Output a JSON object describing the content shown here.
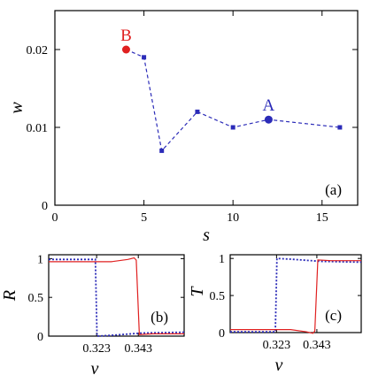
{
  "colors": {
    "blue": "#2b2bb8",
    "red": "#e02020",
    "axis": "#000000"
  },
  "chart_data": [
    {
      "type": "line",
      "panel": "(a)",
      "xlabel": "s",
      "ylabel": "w",
      "xlim": [
        0,
        17
      ],
      "ylim": [
        0,
        0.025
      ],
      "xticks": [
        0,
        5,
        10,
        15
      ],
      "yticks": [
        0,
        0.01,
        0.02
      ],
      "xtick_labels": [
        "0",
        "5",
        "10",
        "15"
      ],
      "ytick_labels": [
        "0",
        "0.01",
        "0.02"
      ],
      "series": [
        {
          "style": "dashed",
          "color": "#2b2bb8",
          "x": [
            4,
            5,
            6,
            8,
            10,
            12,
            16
          ],
          "y": [
            0.02,
            0.019,
            0.007,
            0.012,
            0.01,
            0.011,
            0.01
          ]
        }
      ],
      "annotations": [
        {
          "text": "B",
          "x": 4,
          "y": 0.02,
          "color": "#e02020"
        },
        {
          "text": "A",
          "x": 12,
          "y": 0.011,
          "color": "#2b2bb8"
        }
      ],
      "grid": false
    },
    {
      "type": "line",
      "panel": "(b)",
      "xlabel": "v",
      "ylabel": "R",
      "xlim": [
        0.3,
        0.365
      ],
      "ylim": [
        0,
        1.05
      ],
      "xticks": [
        0.323,
        0.343
      ],
      "yticks": [
        0,
        0.5,
        1
      ],
      "xtick_labels": [
        "0.323",
        "0.343"
      ],
      "ytick_labels": [
        "0",
        "0.5",
        "1"
      ],
      "series": [
        {
          "style": "dotted",
          "color": "#2b2bb8",
          "x": [
            0.3,
            0.3224,
            0.3232,
            0.33,
            0.345,
            0.365
          ],
          "y": [
            0.99,
            0.99,
            0.0,
            0.01,
            0.04,
            0.05
          ]
        },
        {
          "style": "solid",
          "color": "#e02020",
          "x": [
            0.3,
            0.32,
            0.33,
            0.338,
            0.341,
            0.342,
            0.3435,
            0.35,
            0.365
          ],
          "y": [
            0.96,
            0.96,
            0.96,
            0.99,
            1.01,
            0.98,
            0.02,
            0.03,
            0.03
          ]
        }
      ],
      "grid": false
    },
    {
      "type": "line",
      "panel": "(c)",
      "xlabel": "v",
      "ylabel": "T",
      "xlim": [
        0.3,
        0.365
      ],
      "ylim": [
        0,
        1.05
      ],
      "xticks": [
        0.323,
        0.343
      ],
      "yticks": [
        0,
        0.5,
        1
      ],
      "xtick_labels": [
        "0.323",
        "0.343"
      ],
      "ytick_labels": [
        "0",
        "0.5",
        "1"
      ],
      "series": [
        {
          "style": "dotted",
          "color": "#2b2bb8",
          "x": [
            0.3,
            0.3224,
            0.3232,
            0.33,
            0.345,
            0.365
          ],
          "y": [
            0.01,
            0.01,
            1.0,
            0.99,
            0.96,
            0.95
          ]
        },
        {
          "style": "solid",
          "color": "#e02020",
          "x": [
            0.3,
            0.32,
            0.33,
            0.338,
            0.341,
            0.342,
            0.3435,
            0.35,
            0.365
          ],
          "y": [
            0.04,
            0.04,
            0.04,
            0.01,
            -0.01,
            0.02,
            0.98,
            0.97,
            0.97
          ]
        }
      ],
      "grid": false
    }
  ]
}
